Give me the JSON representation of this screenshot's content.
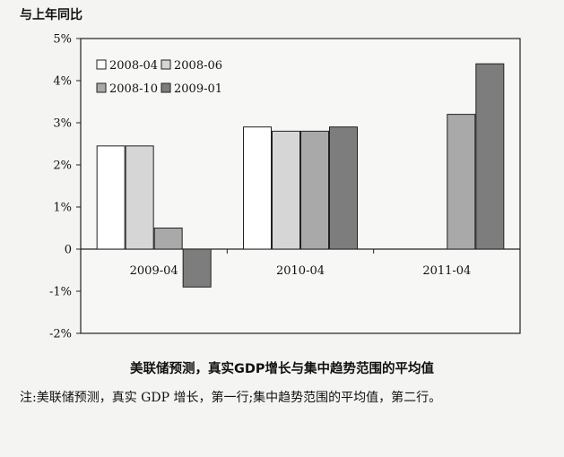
{
  "header": {
    "ylabel": "与上年同比"
  },
  "caption": "美联储预测，真实GDP增长与集中趋势范围的平均值",
  "note": {
    "prefix": "注:",
    "text": "美联储预测，真实 GDP 增长，第一行;集中趋势范围的平均值，第二行。"
  },
  "colors": {
    "2008-04": "#ffffff",
    "2008-06": "#d6d6d6",
    "2008-10": "#a9a9a9",
    "2009-01": "#7d7d7d",
    "frame": "#222222"
  },
  "chart_data": {
    "type": "bar",
    "categories": [
      "2009-04",
      "2010-04",
      "2011-04"
    ],
    "series": [
      {
        "name": "2008-04",
        "values": [
          2.45,
          2.9,
          null
        ]
      },
      {
        "name": "2008-06",
        "values": [
          2.45,
          2.8,
          null
        ]
      },
      {
        "name": "2008-10",
        "values": [
          0.5,
          2.8,
          3.2
        ]
      },
      {
        "name": "2009-01",
        "values": [
          -0.9,
          2.9,
          4.4
        ]
      }
    ],
    "yticks": [
      "5%",
      "4%",
      "3%",
      "2%",
      "1%",
      "0",
      "-1%",
      "-2%"
    ],
    "ylim": [
      -2,
      5
    ],
    "ylabel": "与上年同比",
    "legend": "top-left",
    "grid": false
  }
}
